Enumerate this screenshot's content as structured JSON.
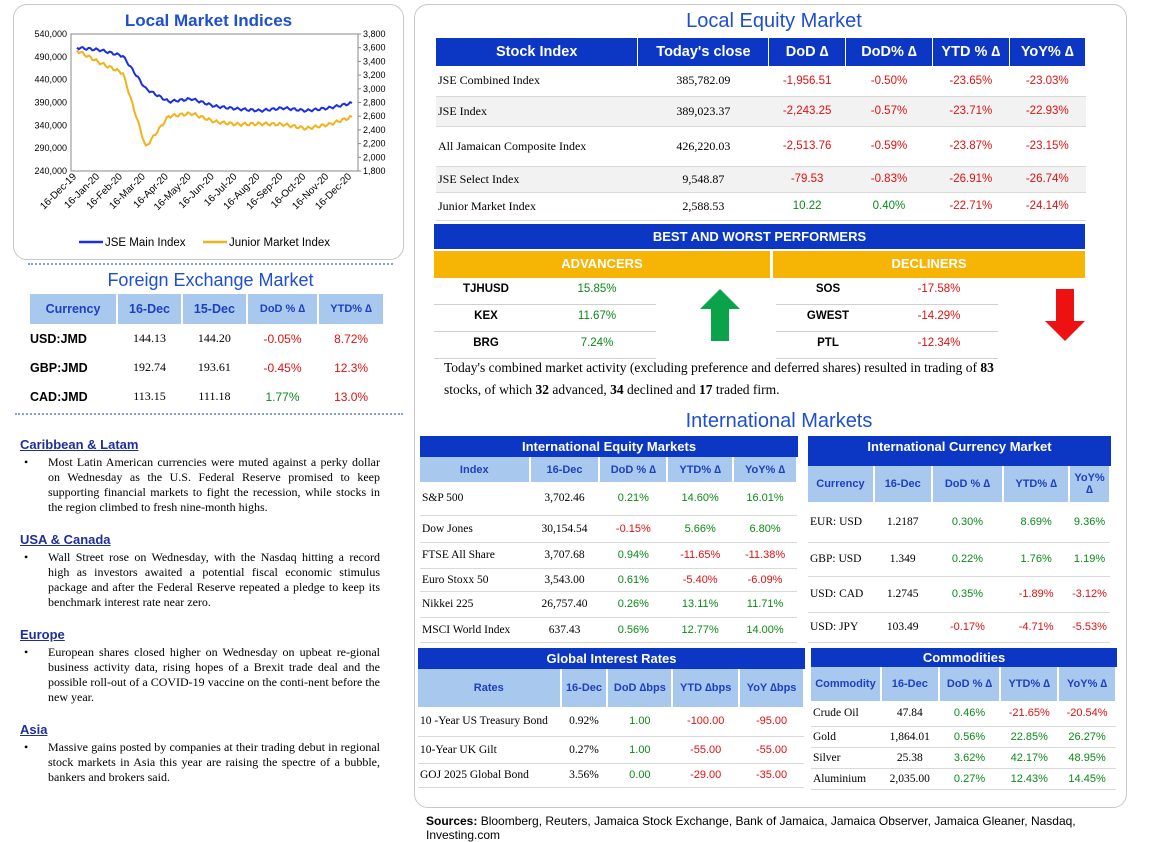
{
  "local_indices": {
    "title": "Local Market Indices",
    "left_ticks": [
      "540,000",
      "490,000",
      "440,000",
      "390,000",
      "340,000",
      "290,000",
      "240,000"
    ],
    "right_ticks": [
      "3,800",
      "3,600",
      "3,400",
      "3,200",
      "3,000",
      "2,800",
      "2,600",
      "2,400",
      "2,200",
      "2,000",
      "1,800"
    ],
    "x_ticks": [
      "16-Dec-19",
      "16-Jan-20",
      "16-Feb-20",
      "16-Mar-20",
      "16-Apr-20",
      "16-May-20",
      "16-Jun-20",
      "16-Jul-20",
      "16-Aug-20",
      "16-Sep-20",
      "16-Oct-20",
      "16-Nov-20",
      "16-Dec-20"
    ],
    "legend": [
      "JSE Main Index",
      "Junior Market Index"
    ],
    "colors": {
      "main": "#1a2fe0",
      "junior": "#f2b21c"
    }
  },
  "chart_data": {
    "type": "line",
    "x": [
      "16-Dec-19",
      "16-Jan-20",
      "16-Feb-20",
      "16-Mar-20",
      "16-Apr-20",
      "16-May-20",
      "16-Jun-20",
      "16-Jul-20",
      "16-Aug-20",
      "16-Sep-20",
      "16-Oct-20",
      "16-Nov-20",
      "16-Dec-20"
    ],
    "series": [
      {
        "name": "JSE Main Index",
        "axis": "left",
        "values": [
          510000,
          505000,
          492000,
          420000,
          392000,
          398000,
          382000,
          376000,
          372000,
          378000,
          372000,
          378000,
          389000
        ]
      },
      {
        "name": "Junior Market Index",
        "axis": "right",
        "values": [
          3560,
          3380,
          3230,
          2150,
          2600,
          2640,
          2520,
          2480,
          2490,
          2480,
          2420,
          2480,
          2590
        ]
      }
    ],
    "ylim_left": [
      240000,
      540000
    ],
    "ylim_right": [
      1800,
      3800
    ]
  },
  "fx": {
    "title": "Foreign Exchange Market",
    "headers": [
      "Currency",
      "16-Dec",
      "15-Dec",
      "DoD % ∆",
      "YTD% ∆"
    ],
    "rows": [
      {
        "cur": "USD:JMD",
        "d1": "144.13",
        "d2": "144.20",
        "dod": "-0.05%",
        "ytd": "8.72%"
      },
      {
        "cur": "GBP:JMD",
        "d1": "192.74",
        "d2": "193.61",
        "dod": "-0.45%",
        "ytd": "12.3%"
      },
      {
        "cur": "CAD:JMD",
        "d1": "113.15",
        "d2": "111.18",
        "dod": "1.77%",
        "ytd": "13.0%"
      }
    ]
  },
  "news": [
    {
      "head": "Caribbean & Latam",
      "text": "Most Latin American currencies were muted against a perky dollar on Wednesday as the U.S. Federal Reserve promised to keep supporting financial markets to fight the recession, while stocks in the region climbed to fresh nine-month highs."
    },
    {
      "head": "USA & Canada",
      "text": "Wall Street rose on Wednesday, with the Nasdaq hitting a record high as investors awaited a potential fiscal economic stimulus package and after the Federal Reserve repeated a pledge to keep its benchmark interest rate near zero."
    },
    {
      "head": "Europe",
      "text": "European shares closed higher on Wednesday on upbeat re-gional business activity data, rising hopes of a Brexit trade deal and the possible roll-out of a COVID-19 vaccine on the conti-nent before the new year."
    },
    {
      "head": "Asia",
      "text": "Massive gains posted by companies at their trading debut in regional stock markets in Asia this year are raising the spectre of a bubble, bankers and brokers said."
    }
  ],
  "equity": {
    "title": "Local Equity Market",
    "headers": [
      "Stock Index",
      "Today's close",
      "DoD  ∆",
      "DoD% ∆",
      "YTD % ∆",
      "YoY% ∆"
    ],
    "rows": [
      {
        "name": "JSE Combined Index",
        "close": "385,782.09",
        "dod": "-1,956.51",
        "dodp": "-0.50%",
        "ytd": "-23.65%",
        "yoy": "-23.03%"
      },
      {
        "name": "JSE Index",
        "close": "389,023.37",
        "dod": "-2,243.25",
        "dodp": "-0.57%",
        "ytd": "-23.71%",
        "yoy": "-22.93%"
      },
      {
        "name": "All Jamaican Composite Index",
        "close": "426,220.03",
        "dod": "-2,513.76",
        "dodp": "-0.59%",
        "ytd": "-23.87%",
        "yoy": "-23.15%"
      },
      {
        "name": "JSE Select Index",
        "close": "9,548.87",
        "dod": "-79.53",
        "dodp": "-0.83%",
        "ytd": "-26.91%",
        "yoy": "-26.74%"
      },
      {
        "name": "Junior Market Index",
        "close": "2,588.53",
        "dod": "10.22",
        "dodp": "0.40%",
        "ytd": "-22.71%",
        "yoy": "-24.14%"
      }
    ]
  },
  "performers": {
    "title": "BEST AND WORST PERFORMERS",
    "adv_label": "ADVANCERS",
    "dec_label": "DECLINERS",
    "advancers": [
      {
        "s": "TJHUSD",
        "v": "15.85%"
      },
      {
        "s": "KEX",
        "v": "11.67%"
      },
      {
        "s": "BRG",
        "v": "7.24%"
      }
    ],
    "decliners": [
      {
        "s": "SOS",
        "v": "-17.58%"
      },
      {
        "s": "GWEST",
        "v": "-14.29%"
      },
      {
        "s": "PTL",
        "v": "-12.34%"
      }
    ]
  },
  "summary": {
    "p1": "Today's combined market activity (excluding preference and deferred shares) resulted in trading of ",
    "n1": "83",
    "p2": "stocks, of which ",
    "n2": "32",
    "p3": " advanced, ",
    "n3": "34",
    "p4": " declined and ",
    "n4": "17",
    "p5": " traded firm."
  },
  "intl": {
    "title": "International Markets",
    "equity": {
      "title": "International Equity Markets",
      "headers": [
        "Index",
        "16-Dec",
        "DoD % ∆",
        "YTD% ∆",
        "YoY% ∆"
      ],
      "rows": [
        {
          "n": "S&P 500",
          "v": "3,702.46",
          "dod": "0.21%",
          "ytd": "14.60%",
          "yoy": "16.01%"
        },
        {
          "n": "Dow Jones",
          "v": "30,154.54",
          "dod": "-0.15%",
          "ytd": "5.66%",
          "yoy": "6.80%"
        },
        {
          "n": "FTSE All Share",
          "v": "3,707.68",
          "dod": "0.94%",
          "ytd": "-11.65%",
          "yoy": "-11.38%"
        },
        {
          "n": "Euro Stoxx 50",
          "v": "3,543.00",
          "dod": "0.61%",
          "ytd": "-5.40%",
          "yoy": "-6.09%"
        },
        {
          "n": "Nikkei 225",
          "v": "26,757.40",
          "dod": "0.26%",
          "ytd": "13.11%",
          "yoy": "11.71%"
        },
        {
          "n": "MSCI World Index",
          "v": "637.43",
          "dod": "0.56%",
          "ytd": "12.77%",
          "yoy": "14.00%"
        }
      ]
    },
    "currency": {
      "title": "International Currency Market",
      "headers": [
        "Currency",
        "16-Dec",
        "DoD % ∆",
        "YTD% ∆",
        "YoY% ∆"
      ],
      "rows": [
        {
          "n": "EUR: USD",
          "v": "1.2187",
          "dod": "0.30%",
          "ytd": "8.69%",
          "yoy": "9.36%"
        },
        {
          "n": "GBP: USD",
          "v": "1.349",
          "dod": "0.22%",
          "ytd": "1.76%",
          "yoy": "1.19%"
        },
        {
          "n": "USD: CAD",
          "v": "1.2745",
          "dod": "0.35%",
          "ytd": "-1.89%",
          "yoy": "-3.12%"
        },
        {
          "n": "USD: JPY",
          "v": "103.49",
          "dod": "-0.17%",
          "ytd": "-4.71%",
          "yoy": "-5.53%"
        }
      ]
    },
    "rates": {
      "title": "Global Interest Rates",
      "headers": [
        "Rates",
        "16-Dec",
        "DoD ∆bps",
        "YTD ∆bps",
        "YoY ∆bps"
      ],
      "rows": [
        {
          "n": "10 -Year US Treasury Bond",
          "v": "0.92%",
          "dod": "1.00",
          "ytd": "-100.00",
          "yoy": "-95.00"
        },
        {
          "n": "10-Year UK Gilt",
          "v": "0.27%",
          "dod": "1.00",
          "ytd": "-55.00",
          "yoy": "-55.00"
        },
        {
          "n": "GOJ 2025 Global Bond",
          "v": "3.56%",
          "dod": "0.00",
          "ytd": "-29.00",
          "yoy": "-35.00"
        }
      ]
    },
    "commodities": {
      "title": "Commodities",
      "headers": [
        "Commodity",
        "16-Dec",
        "DoD % ∆",
        "YTD% ∆",
        "YoY% ∆"
      ],
      "rows": [
        {
          "n": "Crude Oil",
          "v": "47.84",
          "dod": "0.46%",
          "ytd": "-21.65%",
          "yoy": "-20.54%"
        },
        {
          "n": "Gold",
          "v": "1,864.01",
          "dod": "0.56%",
          "ytd": "22.85%",
          "yoy": "26.27%"
        },
        {
          "n": "Silver",
          "v": "25.38",
          "dod": "3.62%",
          "ytd": "42.17%",
          "yoy": "48.95%"
        },
        {
          "n": "Aluminium",
          "v": "2,035.00",
          "dod": "0.27%",
          "ytd": "12.43%",
          "yoy": "14.45%"
        }
      ]
    }
  },
  "sources": {
    "label": "Sources:",
    "text": " Bloomberg, Reuters, Jamaica Stock Exchange, Bank of Jamaica, Jamaica Observer, Jamaica Gleaner, Nasdaq, Investing.com"
  }
}
